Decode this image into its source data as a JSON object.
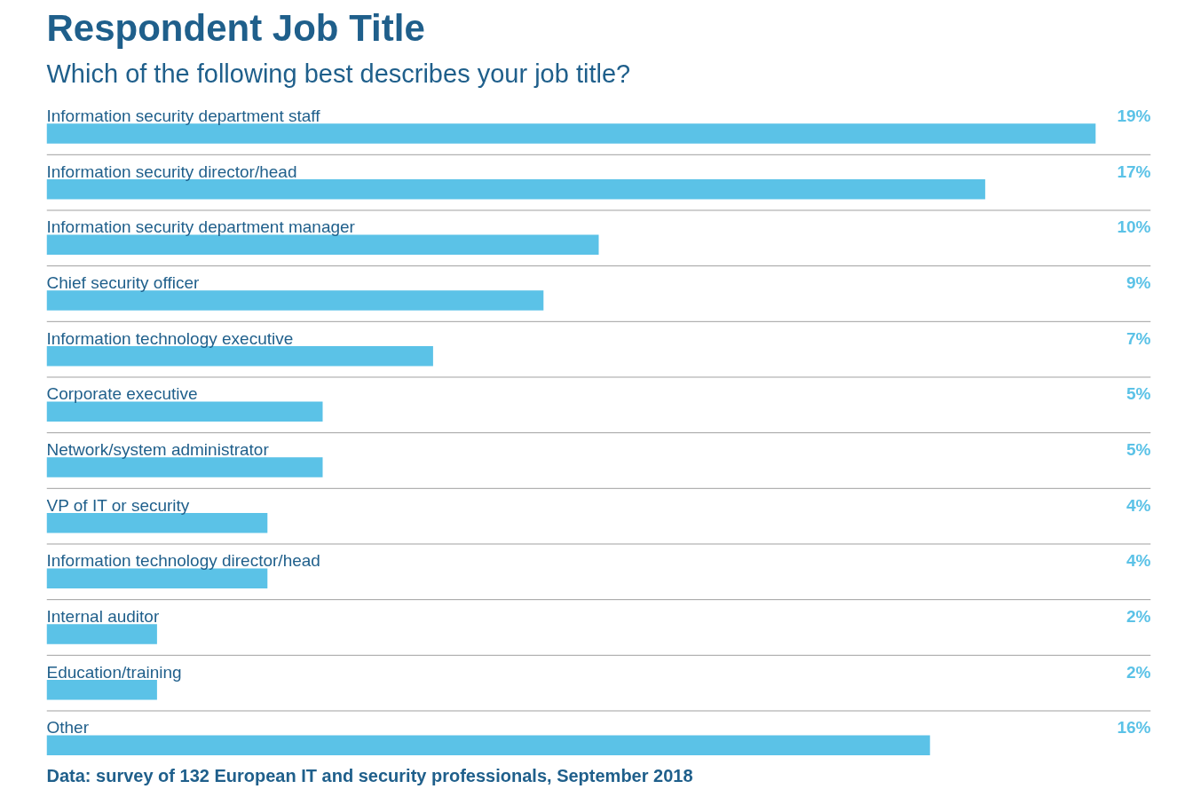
{
  "chart_data": {
    "type": "bar",
    "orientation": "horizontal",
    "title": "Respondent Job Title",
    "subtitle": "Which of the following best describes your job title?",
    "categories": [
      "Information security department staff",
      "Information security director/head",
      "Information security department manager",
      "Chief security officer",
      "Information technology executive",
      "Corporate executive",
      "Network/system administrator",
      "VP of IT or security",
      "Information technology director/head",
      "Internal auditor",
      "Education/training",
      "Other"
    ],
    "values": [
      19,
      17,
      10,
      9,
      7,
      5,
      5,
      4,
      4,
      2,
      2,
      16
    ],
    "value_labels": [
      "19%",
      "17%",
      "10%",
      "9%",
      "7%",
      "5%",
      "5%",
      "4%",
      "4%",
      "2%",
      "2%",
      "16%"
    ],
    "color": "#5bc2e7",
    "xlim": [
      0,
      20
    ],
    "annotations": [
      "Data: survey of 132 European IT and security professionals, September 2018"
    ]
  }
}
